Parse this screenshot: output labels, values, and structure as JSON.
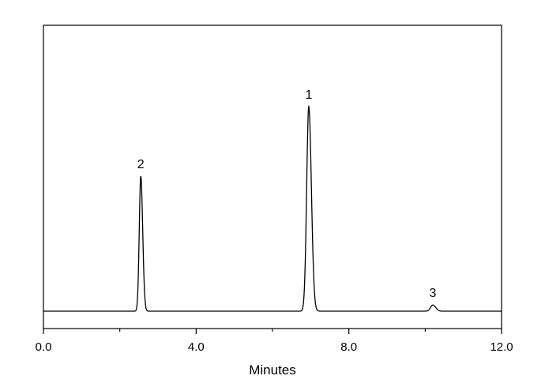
{
  "chart_data": {
    "type": "line",
    "title": "",
    "xlabel": "Minutes",
    "ylabel": "",
    "xlim": [
      0,
      12
    ],
    "ylim": [
      0,
      1.1
    ],
    "x_ticks": [
      "0.0",
      "4.0",
      "8.0",
      "12.0"
    ],
    "x_tick_values": [
      0,
      4,
      8,
      12
    ],
    "x_minor_tick_values": [
      2,
      6,
      10
    ],
    "grid": false,
    "legend": "none",
    "baseline": 0.0,
    "series": [
      {
        "line_color": "#000000",
        "peaks": [
          {
            "label": "2",
            "retention_time": 2.55,
            "height": 0.66,
            "sigma": 0.04
          },
          {
            "label": "1",
            "retention_time": 6.95,
            "height": 1.0,
            "sigma": 0.055
          },
          {
            "label": "3",
            "retention_time": 10.2,
            "height": 0.03,
            "sigma": 0.06
          }
        ]
      }
    ]
  }
}
